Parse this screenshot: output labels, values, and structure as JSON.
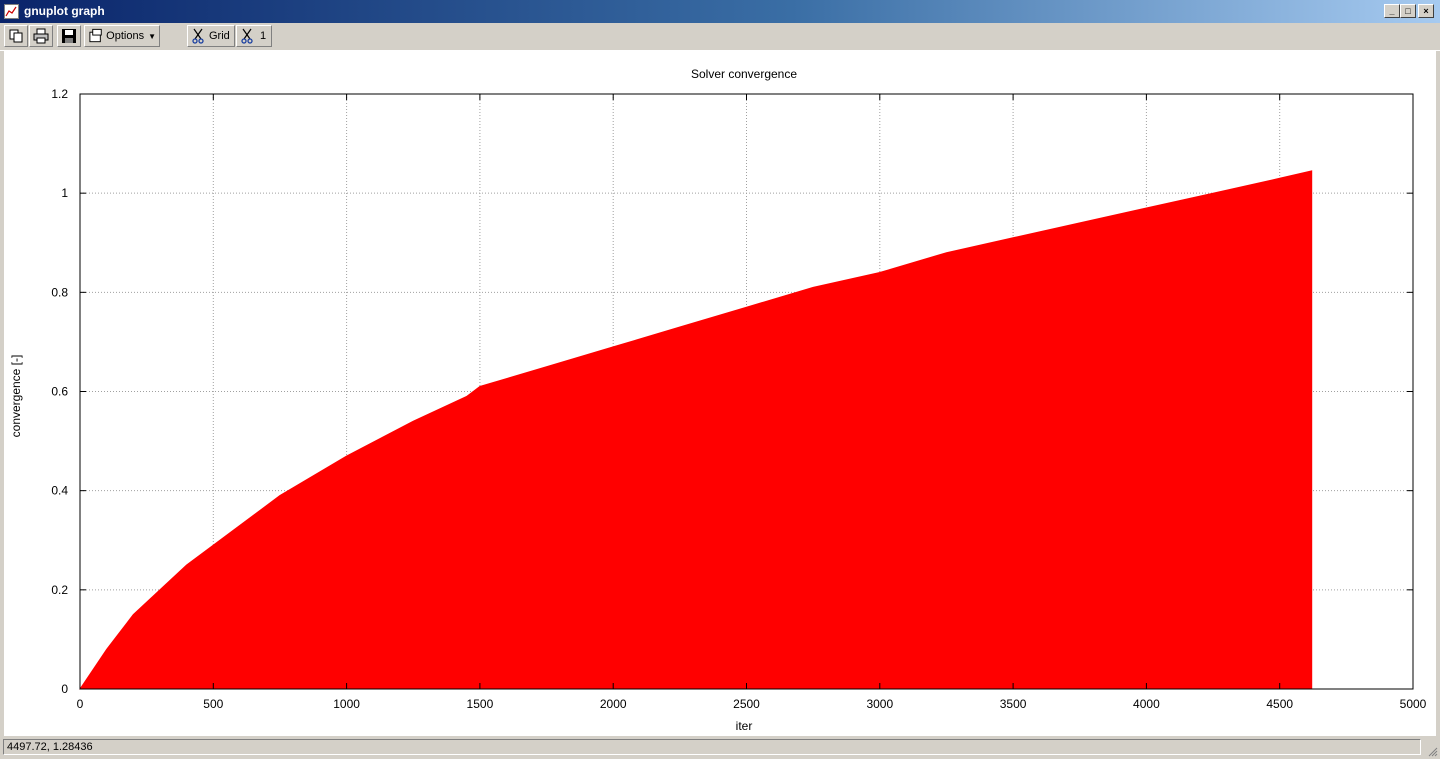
{
  "window": {
    "title": "gnuplot graph"
  },
  "toolbar": {
    "options_label": "Options",
    "grid_label": "Grid",
    "plot1_label": "1"
  },
  "status": {
    "coords": "4497.72,  1.28436"
  },
  "colors": {
    "series": "#ff0000",
    "grid": "#a0a0a0"
  },
  "icons": [
    "copy-icon",
    "print-icon",
    "save-icon",
    "options-icon",
    "scissors-icon",
    "minimize-icon",
    "maximize-icon",
    "close-icon",
    "resize-grip-icon"
  ],
  "chart_data": {
    "type": "area",
    "title": "Solver convergence",
    "xlabel": "iter",
    "ylabel": "convergence [-]",
    "xlim": [
      0,
      5000
    ],
    "ylim": [
      0,
      1.2
    ],
    "xticks": [
      0,
      500,
      1000,
      1500,
      2000,
      2500,
      3000,
      3500,
      4000,
      4500,
      5000
    ],
    "yticks": [
      0,
      0.2,
      0.4,
      0.6,
      0.8,
      1,
      1.2
    ],
    "grid": true,
    "series": [
      {
        "x": [
          0,
          100,
          200,
          300,
          400,
          500,
          750,
          1000,
          1250,
          1450,
          1500,
          1750,
          2000,
          2250,
          2500,
          2750,
          3000,
          3250,
          3500,
          3750,
          4000,
          4250,
          4500,
          4620
        ],
        "y": [
          0,
          0.08,
          0.15,
          0.2,
          0.25,
          0.29,
          0.39,
          0.47,
          0.54,
          0.59,
          0.61,
          0.65,
          0.69,
          0.73,
          0.77,
          0.81,
          0.84,
          0.88,
          0.91,
          0.94,
          0.97,
          1.0,
          1.03,
          1.045
        ]
      }
    ]
  }
}
